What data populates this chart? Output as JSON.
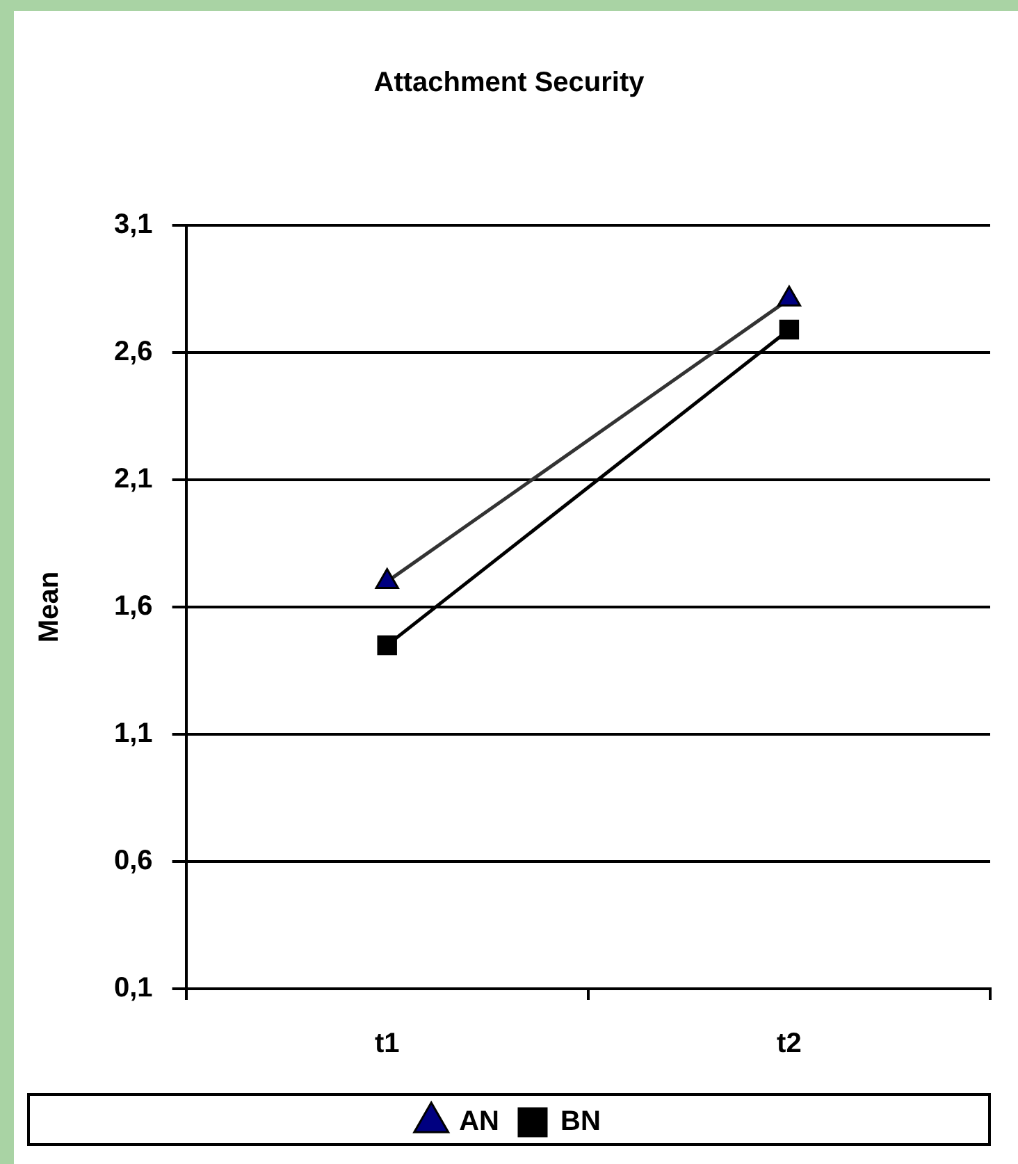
{
  "chart_data": {
    "type": "line",
    "title": "Attachment Security",
    "ylabel": "Mean",
    "categories": [
      "t1",
      "t2"
    ],
    "series": [
      {
        "name": "AN",
        "color": "#000080",
        "values": [
          1.7,
          2.81
        ],
        "marker": "triangle"
      },
      {
        "name": "BN",
        "color": "#000000",
        "values": [
          1.45,
          2.69
        ],
        "marker": "square"
      }
    ],
    "ylim": [
      0.1,
      3.1
    ],
    "yticks": [
      {
        "value": 0.1,
        "label": "0,1"
      },
      {
        "value": 0.6,
        "label": "0,6"
      },
      {
        "value": 1.1,
        "label": "1,1"
      },
      {
        "value": 1.6,
        "label": "1,6"
      },
      {
        "value": 2.1,
        "label": "2,1"
      },
      {
        "value": 2.6,
        "label": "2,6"
      },
      {
        "value": 3.1,
        "label": "3,1"
      }
    ],
    "grid": "y",
    "legend": "bottom"
  }
}
